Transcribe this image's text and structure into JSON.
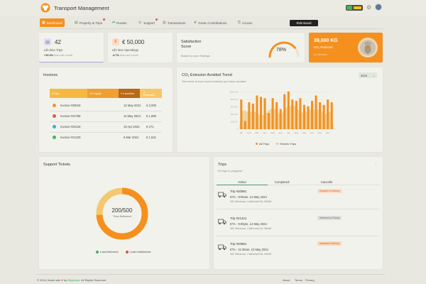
{
  "header": {
    "title": "Transport Management"
  },
  "nav": {
    "items": [
      {
        "label": "Dashboard",
        "icon": "dashboard-icon"
      },
      {
        "label": "Property & Trips",
        "icon": "property-icon"
      },
      {
        "label": "Routes",
        "icon": "routes-icon"
      },
      {
        "label": "Support",
        "icon": "support-icon"
      },
      {
        "label": "Transactions",
        "icon": "transactions-icon"
      },
      {
        "label": "Green Contributions",
        "icon": "leaf-icon"
      },
      {
        "label": "Access",
        "icon": "access-icon"
      }
    ],
    "ride_board": "Ride Board"
  },
  "stats": {
    "trips": {
      "value": "42",
      "label": "Life time Trips",
      "delta": "+10.2%",
      "delta_sub": "than last month"
    },
    "spend": {
      "value": "€ 50,000",
      "label": "Life time Spendings",
      "delta": "-3.7%",
      "delta_sub": "than last month"
    },
    "satisfaction": {
      "title_line1": "Satisfaction",
      "title_line2": "Score",
      "sub": "Based on your Ratings",
      "value": "78%",
      "percent": 78
    },
    "co2": {
      "value": "39,000 KG",
      "label": "CO₂ Reduced",
      "sub": "In Life time"
    }
  },
  "invoices": {
    "title": "Invoices",
    "segments": [
      {
        "label": "8 Paid",
        "color": "#f5b942"
      },
      {
        "label": "10 Unpaid",
        "color": "#f0a030"
      },
      {
        "label": "0 Cancelled",
        "color": "#b86818"
      },
      {
        "label": "0",
        "label2": "Refunded",
        "color": "#f7c766"
      }
    ],
    "rows": [
      {
        "name": "Invoice #20018",
        "date": "12 May 2024",
        "amount": "€ 2,000",
        "color": "#f5901e",
        "glyph": "↑"
      },
      {
        "name": "Invoice #24788",
        "date": "11 May 2024",
        "amount": "€ 1,890",
        "color": "#e05050",
        "glyph": "↓"
      },
      {
        "name": "Invoice #20126",
        "date": "10 Apr 2024",
        "amount": "€ 271",
        "color": "#3aa8c8",
        "glyph": "i"
      },
      {
        "name": "Invoice #21229",
        "date": "9 Mar 2024",
        "amount": "€ 1,521",
        "color": "#3cb060",
        "glyph": "✓"
      }
    ]
  },
  "co2_chart": {
    "title": "CO₂ Emission Avoided Trend",
    "subtitle": "See trend of how much emission you have avoided",
    "year": "2023",
    "legend": [
      {
        "label": "All Trips",
        "color": "#f5901e"
      },
      {
        "label": "Electric Trips",
        "color": "#e0c080"
      }
    ]
  },
  "chart_data": {
    "type": "bar",
    "categories": [
      "Jan",
      "",
      "Feb",
      "",
      "Mar",
      "",
      "Apr",
      "",
      "May",
      "",
      "Jun",
      "",
      "Jul",
      "",
      "Aug",
      "",
      "Sep",
      "",
      "Oct",
      "",
      "Nov",
      "",
      "Dec",
      ""
    ],
    "series": [
      {
        "name": "All Trips",
        "values": [
          1100,
          300,
          1000,
          950,
          1250,
          1200,
          1150,
          600,
          1150,
          1000,
          750,
          1300,
          1400,
          1100,
          1050,
          1150,
          900,
          850,
          1050,
          1250,
          1000,
          900,
          1100,
          1000
        ]
      },
      {
        "name": "Electric Trips",
        "values": [
          650,
          700,
          600,
          700,
          600,
          500,
          550,
          700,
          800,
          700,
          500,
          750,
          850,
          900,
          800,
          650,
          600,
          700,
          750,
          700,
          750,
          550,
          600,
          700
        ]
      }
    ],
    "y_ticks": [
      "0",
      "200 KG",
      "400 KG",
      "600 KG",
      "800 KG",
      "1000 KG"
    ],
    "ylim": [
      0,
      1500
    ]
  },
  "tickets": {
    "title": "Support Tickets",
    "center_value": "200/500",
    "center_label": "Time Delivered",
    "delivered": 200,
    "total": 500,
    "legend": [
      {
        "label": "Load Delivered",
        "color": "#3cb060"
      },
      {
        "label": "Load Undelivered",
        "color": "#e05050"
      }
    ]
  },
  "trips": {
    "title": "Trips",
    "subtitle": "62 trips in progress",
    "tabs": [
      "Active",
      "Completed",
      "Cancelle"
    ],
    "rows": [
      {
        "name": "Trip #20981",
        "eta": "ETA - 9:00am, 12 May 2024",
        "addr": "962 Windrose, California/CAL 98468",
        "status": "Delayed to Delivery",
        "status_bg": "#fcdcc8",
        "status_fg": "#c86020"
      },
      {
        "name": "Trip #21421",
        "eta": "ETA - 9:00pm, 12 May 2024",
        "addr": "962 Windrose, California/CAL 98468",
        "status": "Delivered to Pickup",
        "status_bg": "#e0e0e0",
        "status_fg": "#666"
      },
      {
        "name": "Trip #20891",
        "eta": "ETA - 11:30am, 13 May 2024",
        "addr": "962 Windrose, California/CAL 98468",
        "status": "Intransit to Delivery",
        "status_bg": "#fcd6b8",
        "status_fg": "#c86020"
      }
    ]
  },
  "footer": {
    "text": "© 2024, Made with",
    "by": "by",
    "brand": "Brightsim",
    "rights": "All Rights Reserved",
    "links": [
      "About",
      "Terms",
      "Privacy"
    ]
  }
}
